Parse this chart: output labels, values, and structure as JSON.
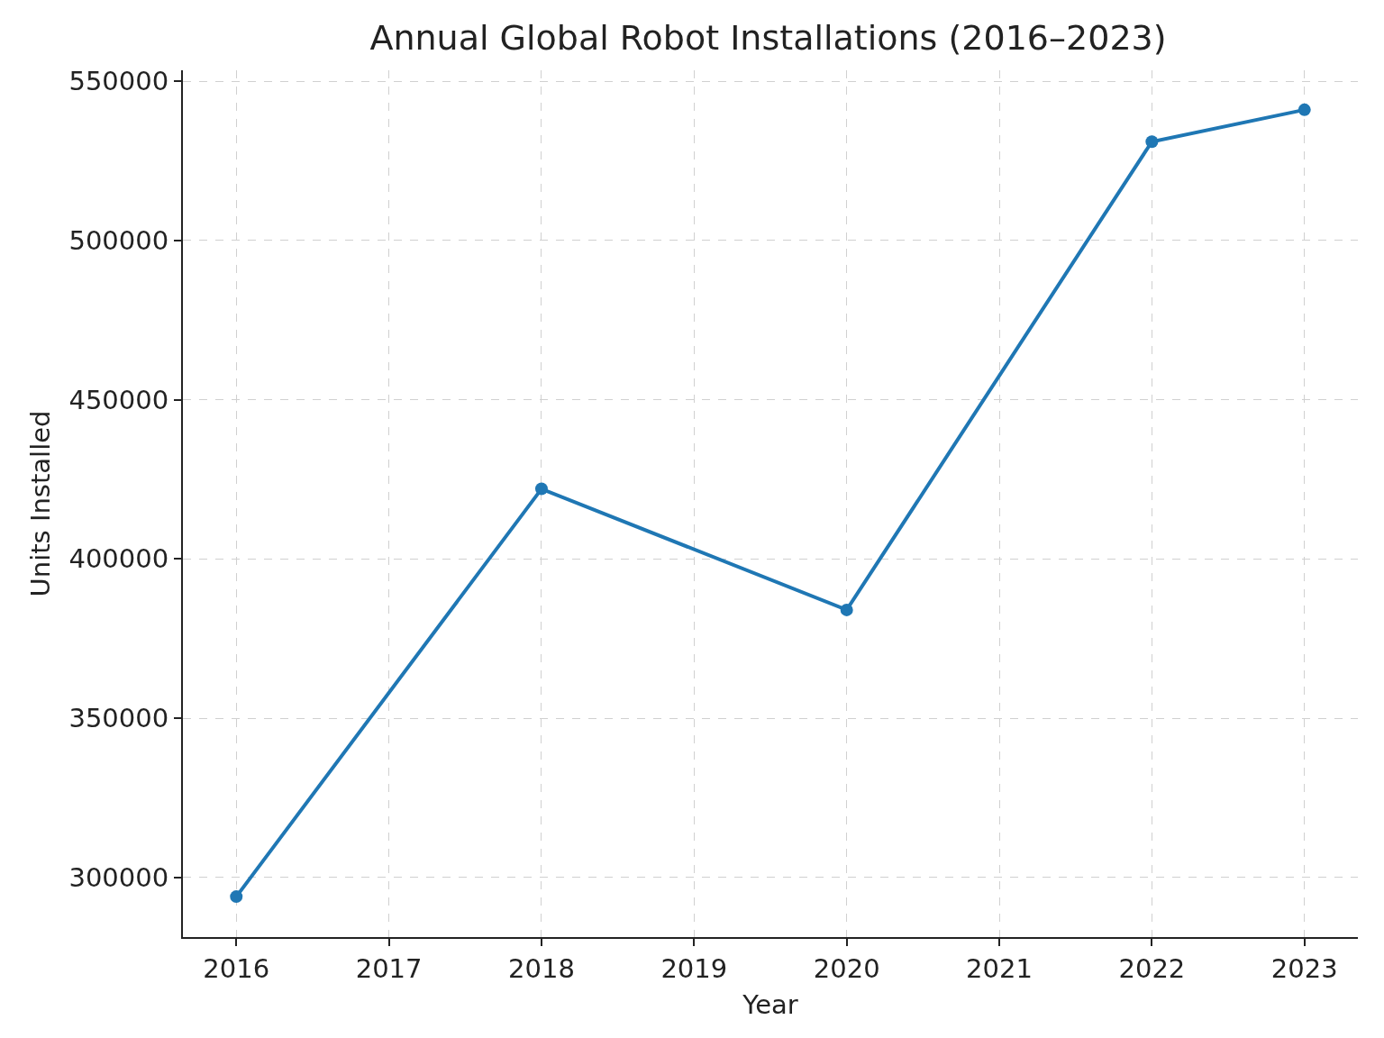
{
  "chart_data": {
    "type": "line",
    "title": "Annual Global Robot Installations (2016–2023)",
    "xlabel": "Year",
    "ylabel": "Units Installed",
    "x": [
      2016,
      2018,
      2020,
      2022,
      2023
    ],
    "series": [
      {
        "color": "#1f77b4",
        "values": [
          294000,
          422000,
          384000,
          531000,
          541000
        ]
      }
    ],
    "xlim": [
      2015.65,
      2023.35
    ],
    "xticks": [
      2016,
      2017,
      2018,
      2019,
      2020,
      2021,
      2022,
      2023
    ],
    "ylim": [
      281300,
      553400
    ],
    "yticks": [
      300000,
      350000,
      400000,
      450000,
      500000,
      550000
    ],
    "grid": true,
    "marker": "circle",
    "line_style": "solid"
  }
}
